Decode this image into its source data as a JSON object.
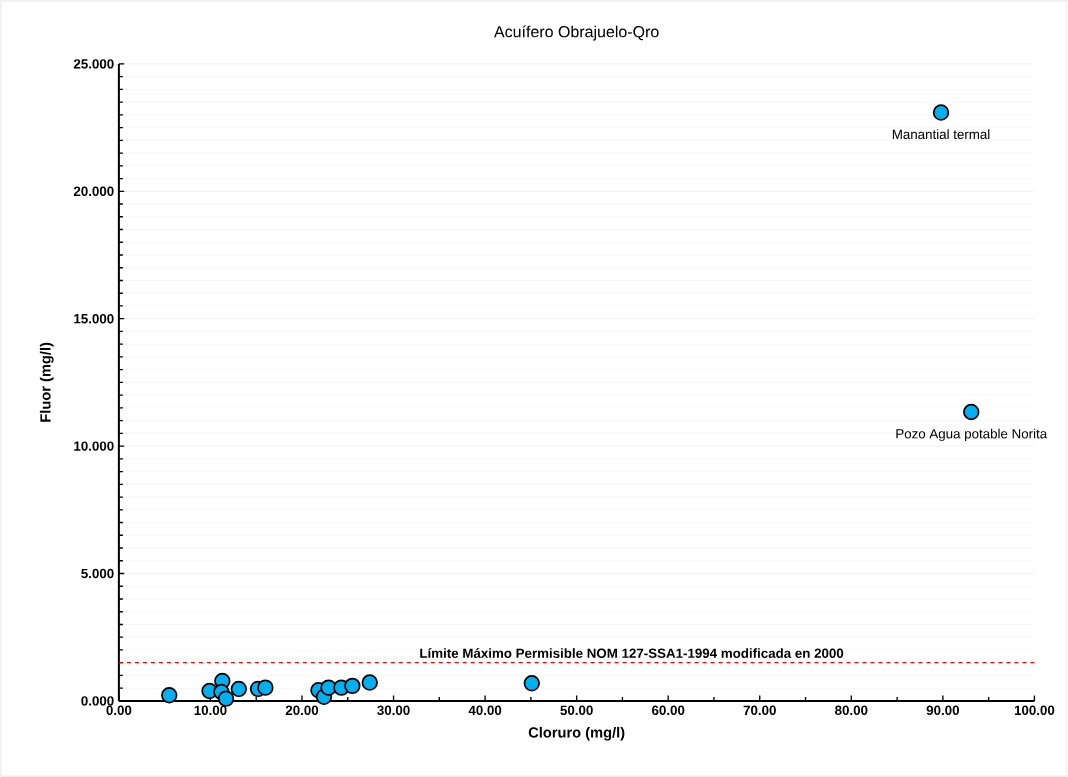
{
  "chart_data": {
    "type": "scatter",
    "title": "Acuífero Obrajuelo-Qro",
    "xlabel": "Cloruro (mg/l)",
    "ylabel": "Fluor (mg/l)",
    "x": [
      5.5,
      9.9,
      11.3,
      11.2,
      11.7,
      13.1,
      15.2,
      16.0,
      21.8,
      22.4,
      22.9,
      24.3,
      25.5,
      27.4,
      45.1,
      89.8,
      93.1
    ],
    "series": [
      {
        "color": "#00b0f0",
        "values": [
          0.22,
          0.39,
          0.78,
          0.35,
          0.09,
          0.47,
          0.47,
          0.52,
          0.42,
          0.16,
          0.52,
          0.52,
          0.59,
          0.72,
          0.69,
          23.09,
          11.34
        ]
      }
    ],
    "marker": "circle",
    "grid": "y",
    "xlim": [
      0,
      100
    ],
    "ylim": [
      0,
      25
    ],
    "xticks": [
      {
        "value": 0,
        "label": "0.00"
      },
      {
        "value": 10,
        "label": "10.00"
      },
      {
        "value": 20,
        "label": "20.00"
      },
      {
        "value": 30,
        "label": "30.00"
      },
      {
        "value": 40,
        "label": "40.00"
      },
      {
        "value": 50,
        "label": "50.00"
      },
      {
        "value": 60,
        "label": "60.00"
      },
      {
        "value": 70,
        "label": "70.00"
      },
      {
        "value": 80,
        "label": "80.00"
      },
      {
        "value": 90,
        "label": "90.00"
      },
      {
        "value": 100,
        "label": "100.00"
      }
    ],
    "yticks": [
      {
        "value": 0,
        "label": "0.000"
      },
      {
        "value": 5,
        "label": "5.000"
      },
      {
        "value": 10,
        "label": "10.000"
      },
      {
        "value": 15,
        "label": "15.000"
      },
      {
        "value": 20,
        "label": "20.000"
      },
      {
        "value": 25,
        "label": "25.000"
      }
    ],
    "ref_lines": [
      {
        "axis": "y",
        "value": 1.5,
        "label": "Límite Máximo Permisible NOM 127-SSA1-1994 modificada en 2000",
        "color": "#ff0000",
        "line_style": "dashed"
      }
    ],
    "annotations": [
      {
        "text": "Manantial termal",
        "x": 89.8,
        "y": 23.09
      },
      {
        "text": "Pozo Agua potable Norita",
        "x": 93.1,
        "y": 11.34
      }
    ]
  }
}
